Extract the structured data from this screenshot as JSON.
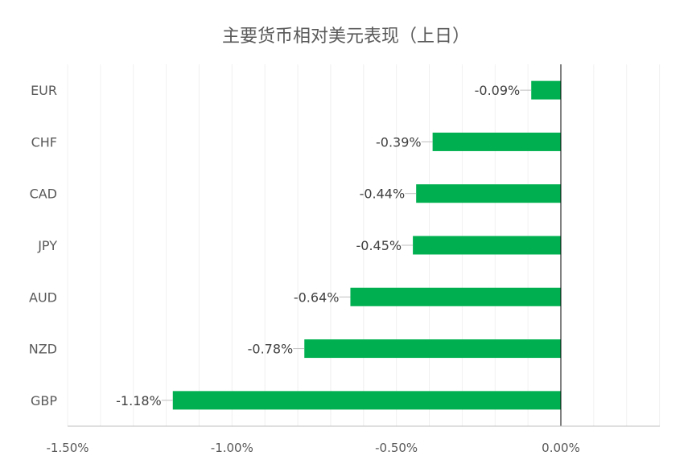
{
  "chart_data": {
    "type": "bar",
    "orientation": "horizontal",
    "title": "主要货币相对美元表现（上日）",
    "categories": [
      "EUR",
      "CHF",
      "CAD",
      "JPY",
      "AUD",
      "NZD",
      "GBP"
    ],
    "values": [
      -0.09,
      -0.39,
      -0.44,
      -0.45,
      -0.64,
      -0.78,
      -1.18
    ],
    "data_labels": [
      "-0.09%",
      "-0.39%",
      "-0.44%",
      "-0.45%",
      "-0.64%",
      "-0.78%",
      "-1.18%"
    ],
    "x_ticks": [
      -1.5,
      -1.0,
      -0.5,
      0.0
    ],
    "x_tick_labels": [
      "-1.50%",
      "-1.00%",
      "-0.50%",
      "0.00%"
    ],
    "xlim": [
      -1.5,
      0.3
    ],
    "grid": true,
    "colors": {
      "bar": "#00b050",
      "grid": "#f0f0f0",
      "axis": "#000000",
      "text": "#595959"
    }
  }
}
